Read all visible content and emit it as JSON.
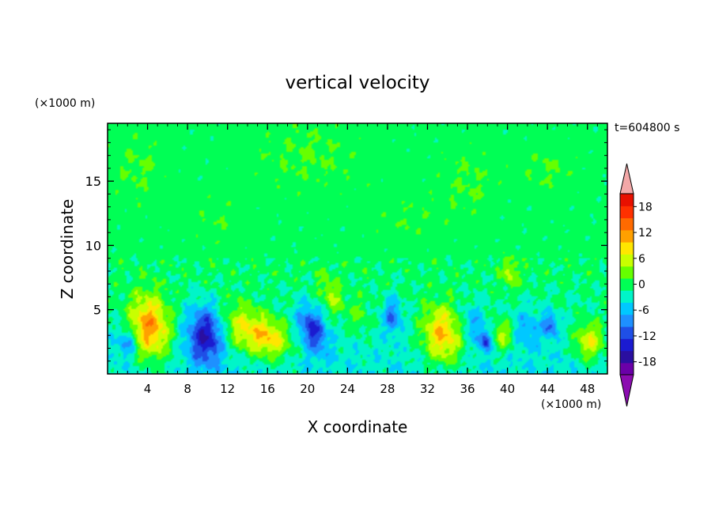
{
  "chart_data": {
    "type": "heatmap",
    "title": "vertical velocity",
    "time_label": "t=604800 s",
    "xlabel": "X coordinate",
    "ylabel": "Z coordinate",
    "x_unit": "(×1000 m)",
    "y_unit": "(×1000 m)",
    "xlim": [
      0,
      50
    ],
    "ylim": [
      0,
      19.5
    ],
    "x_ticks": [
      4,
      8,
      12,
      16,
      20,
      24,
      28,
      32,
      36,
      40,
      44,
      48
    ],
    "y_ticks": [
      5,
      10,
      15
    ],
    "colorbar": {
      "ticks": [
        18,
        12,
        6,
        0,
        -6,
        -12,
        -18
      ],
      "levels": [
        -21,
        -18,
        -15,
        -12,
        -9,
        -6,
        -3,
        0,
        3,
        6,
        9,
        12,
        15,
        18,
        21
      ],
      "colors": [
        "#6a00a8",
        "#2a0fa0",
        "#1b1bd0",
        "#1f4fe6",
        "#1e90ff",
        "#00c8ff",
        "#00f5c8",
        "#00ff55",
        "#66ff00",
        "#c8ff00",
        "#ffe600",
        "#ffa000",
        "#ff6a00",
        "#ff3000",
        "#e81000"
      ],
      "under_color": "#8b0cb0",
      "over_color": "#f3a8a8"
    },
    "background_value": 1,
    "features": [
      {
        "x": 4.2,
        "z": 3.6,
        "sx": 2.0,
        "sz": 2.5,
        "rot": 0.25,
        "amp": 15
      },
      {
        "x": 2.0,
        "z": 2.5,
        "sx": 1.0,
        "sz": 1.0,
        "rot": 0,
        "amp": -8
      },
      {
        "x": 9.8,
        "z": 3.0,
        "sx": 1.8,
        "sz": 2.2,
        "rot": 0.1,
        "amp": -14
      },
      {
        "x": 13.5,
        "z": 3.6,
        "sx": 2.2,
        "sz": 1.8,
        "rot": -0.4,
        "amp": 9
      },
      {
        "x": 16.3,
        "z": 2.7,
        "sx": 2.0,
        "sz": 1.5,
        "rot": -0.3,
        "amp": 11
      },
      {
        "x": 20.5,
        "z": 3.5,
        "sx": 1.2,
        "sz": 1.9,
        "rot": 0.5,
        "amp": -12
      },
      {
        "x": 22.5,
        "z": 6.0,
        "sx": 1.0,
        "sz": 1.8,
        "rot": 0.6,
        "amp": 6
      },
      {
        "x": 25.2,
        "z": 4.5,
        "sx": 1.0,
        "sz": 1.5,
        "rot": 0,
        "amp": 4
      },
      {
        "x": 28.5,
        "z": 4.5,
        "sx": 0.8,
        "sz": 1.3,
        "rot": 0,
        "amp": -9
      },
      {
        "x": 33.5,
        "z": 3.0,
        "sx": 2.0,
        "sz": 2.3,
        "rot": 0.3,
        "amp": 13
      },
      {
        "x": 36.5,
        "z": 4.0,
        "sx": 1.2,
        "sz": 1.5,
        "rot": 0,
        "amp": -5
      },
      {
        "x": 37.8,
        "z": 2.6,
        "sx": 0.7,
        "sz": 0.8,
        "rot": 0,
        "amp": -11
      },
      {
        "x": 39.5,
        "z": 3.0,
        "sx": 1.2,
        "sz": 1.2,
        "rot": 0,
        "amp": 8
      },
      {
        "x": 40.3,
        "z": 7.8,
        "sx": 0.8,
        "sz": 1.2,
        "rot": 0,
        "amp": 6
      },
      {
        "x": 42.0,
        "z": 3.5,
        "sx": 1.5,
        "sz": 1.5,
        "rot": 0,
        "amp": -5
      },
      {
        "x": 44.3,
        "z": 3.8,
        "sx": 0.7,
        "sz": 0.9,
        "rot": 0,
        "amp": -9
      },
      {
        "x": 48.2,
        "z": 2.5,
        "sx": 1.5,
        "sz": 1.5,
        "rot": 0,
        "amp": 10
      }
    ],
    "upper_patches": [
      {
        "x": 3,
        "z": 16,
        "sx": 3,
        "sz": 3,
        "amp": 2
      },
      {
        "x": 11,
        "z": 12,
        "sx": 3,
        "sz": 2,
        "amp": 1.5
      },
      {
        "x": 20,
        "z": 17,
        "sx": 6,
        "sz": 3,
        "amp": 2
      },
      {
        "x": 36,
        "z": 15,
        "sx": 3,
        "sz": 3,
        "amp": 2
      },
      {
        "x": 44,
        "z": 16,
        "sx": 3,
        "sz": 2,
        "amp": 2
      },
      {
        "x": 30,
        "z": 12,
        "sx": 4,
        "sz": 2,
        "amp": 1.5
      }
    ],
    "low_layer": {
      "z_top": 8,
      "amp": -3.5
    }
  }
}
